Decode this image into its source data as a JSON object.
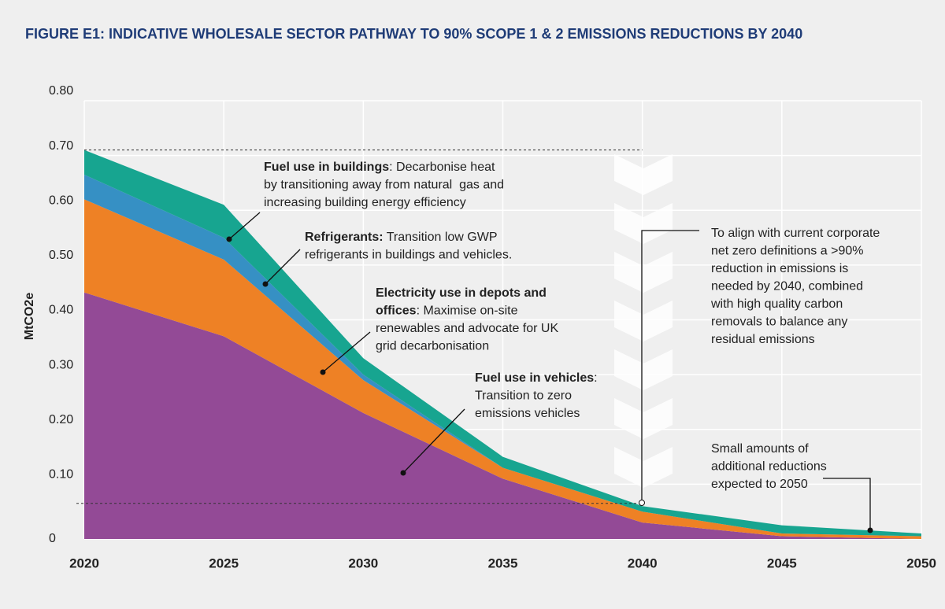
{
  "chart_data": {
    "type": "stacked-area",
    "title": "FIGURE E1: INDICATIVE WHOLESALE SECTOR PATHWAY TO 90% SCOPE 1 & 2 EMISSIONS REDUCTIONS BY 2040",
    "y_label": "MtCO2e",
    "x": [
      2020,
      2025,
      2030,
      2035,
      2040,
      2045,
      2050
    ],
    "xlim": [
      2020,
      2050
    ],
    "xticks": [
      2020,
      2025,
      2030,
      2035,
      2040,
      2045,
      2050
    ],
    "ylim": [
      0,
      0.8
    ],
    "yticks": [
      0,
      {
        "value": 0.1,
        "label": "0.10"
      },
      {
        "value": 0.2,
        "label": "0.20"
      },
      {
        "value": 0.3,
        "label": "0.30"
      },
      {
        "value": 0.4,
        "label": "0.40"
      },
      {
        "value": 0.5,
        "label": "0.50"
      },
      {
        "value": 0.6,
        "label": "0.60"
      },
      {
        "value": 0.7,
        "label": "0.70"
      },
      {
        "value": 0.8,
        "label": "0.80"
      }
    ],
    "grid": true,
    "series": [
      {
        "name": "Fuel use in vehicles",
        "color": "#934a96",
        "values": [
          0.45,
          0.37,
          0.23,
          0.11,
          0.03,
          0.005,
          0
        ]
      },
      {
        "name": "Electricity use in depots and offices",
        "color": "#ee8125",
        "values": [
          0.17,
          0.14,
          0.06,
          0.02,
          0.02,
          0.005,
          0.005
        ]
      },
      {
        "name": "Refrigerants",
        "color": "#3690c4",
        "values": [
          0.045,
          0.04,
          0.01,
          0,
          0,
          0,
          0
        ]
      },
      {
        "name": "Fuel use in buildings",
        "color": "#17a590",
        "values": [
          0.045,
          0.06,
          0.03,
          0.02,
          0.01,
          0.015,
          0.005
        ]
      }
    ],
    "reference_lines": [
      0.71,
      0.065
    ],
    "annotations": [
      {
        "lines": [
          {
            "bold": "Fuel use in buildings",
            "text": ": Decarbonise heat"
          },
          {
            "text": "by transitioning away from natural  gas and"
          },
          {
            "text": "increasing building energy efficiency"
          }
        ]
      },
      {
        "lines": [
          {
            "bold": "Refrigerants:",
            "text": " Transition low GWP"
          },
          {
            "text": "refrigerants in buildings and vehicles."
          }
        ]
      },
      {
        "lines": [
          {
            "bold": "Electricity use in depots and"
          },
          {
            "bold": "offices",
            "text": ": Maximise on-site"
          },
          {
            "text": "renewables and advocate for UK"
          },
          {
            "text": "grid decarbonisation"
          }
        ]
      },
      {
        "lines": [
          {
            "bold": "Fuel use in vehicles",
            "text": ":"
          },
          {
            "text": "Transition to zero"
          },
          {
            "text": "emissions vehicles"
          }
        ]
      },
      {
        "lines": [
          {
            "text": "To align with current corporate"
          },
          {
            "text": "net zero definitions a >90%"
          },
          {
            "text": "reduction in emissions is"
          },
          {
            "text": "needed by 2040, combined"
          },
          {
            "text": "with high quality carbon"
          },
          {
            "text": "removals to balance any"
          },
          {
            "text": "residual emissions"
          }
        ]
      },
      {
        "lines": [
          {
            "text": "Small amounts of"
          },
          {
            "text": "additional reductions"
          },
          {
            "text": "expected to 2050"
          }
        ]
      }
    ]
  }
}
